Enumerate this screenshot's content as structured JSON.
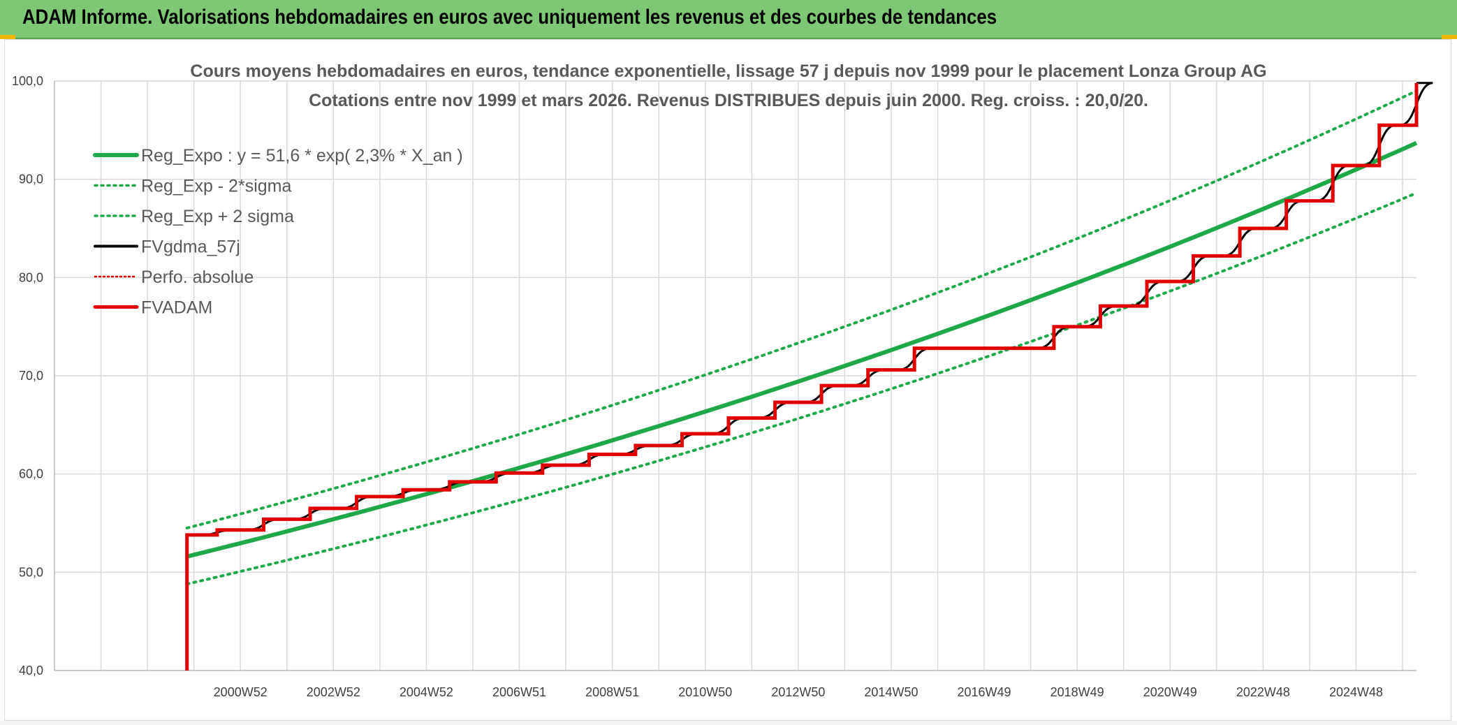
{
  "banner": {
    "title": "ADAM Informe. Valorisations hebdomadaires en euros avec uniquement les revenus et des courbes de tendances"
  },
  "chart_data": {
    "type": "line",
    "title": "Cours moyens hebdomadaires en euros, tendance exponentielle, lissage 57 j depuis nov 1999 pour le placement Lonza Group AG",
    "subtitle": "Cotations entre nov 1999 et mars 2026. Revenus DISTRIBUES depuis juin 2000. Reg. croiss. : 20,0/20.",
    "xlabel": "",
    "ylabel": "",
    "ylim": [
      40,
      100
    ],
    "xlim": [
      1997.0,
      2026.3
    ],
    "yticks": [
      "40,0",
      "50,0",
      "60,0",
      "70,0",
      "80,0",
      "90,0",
      "100,0"
    ],
    "xticks": [
      {
        "label": "2000W52",
        "x": 2001.0
      },
      {
        "label": "2002W52",
        "x": 2003.0
      },
      {
        "label": "2004W52",
        "x": 2005.0
      },
      {
        "label": "2006W51",
        "x": 2007.0
      },
      {
        "label": "2008W51",
        "x": 2009.0
      },
      {
        "label": "2010W50",
        "x": 2011.0
      },
      {
        "label": "2012W50",
        "x": 2013.0
      },
      {
        "label": "2014W50",
        "x": 2015.0
      },
      {
        "label": "2016W49",
        "x": 2017.0
      },
      {
        "label": "2018W49",
        "x": 2019.0
      },
      {
        "label": "2020W49",
        "x": 2021.0
      },
      {
        "label": "2022W48",
        "x": 2023.0
      },
      {
        "label": "2024W48",
        "x": 2025.0
      }
    ],
    "grid": true,
    "legend_position": "top-left",
    "series": [
      {
        "name": "Reg_Expo : y = 51,6 * exp( 2,3% *  X_an )",
        "color": "#1fa84a",
        "style": "solid-thick",
        "x": [
          1999.85,
          2026.3
        ],
        "y": [
          51.6,
          93.7
        ]
      },
      {
        "name": "Reg_Exp - 2*sigma",
        "color": "#1fa84a",
        "style": "dotted",
        "x": [
          1999.85,
          2026.3
        ],
        "y": [
          48.8,
          88.6
        ]
      },
      {
        "name": "Reg_Exp + 2 sigma",
        "color": "#1fa84a",
        "style": "dotted",
        "x": [
          1999.85,
          2026.3
        ],
        "y": [
          54.5,
          99.0
        ]
      },
      {
        "name": "FVgdma_57j",
        "color": "#000000",
        "style": "smooth-steps"
      },
      {
        "name": "Perfo. absolue",
        "color": "#e00000",
        "style": "dotted"
      },
      {
        "name": "FVADAM",
        "color": "#e00000",
        "style": "steps",
        "x": [
          1999.85,
          2000.5,
          2001.5,
          2002.5,
          2003.5,
          2004.5,
          2005.5,
          2006.5,
          2007.5,
          2008.5,
          2009.5,
          2010.5,
          2011.5,
          2012.5,
          2013.5,
          2014.5,
          2015.5,
          2018.5,
          2019.5,
          2020.5,
          2021.5,
          2022.5,
          2023.5,
          2024.5,
          2025.5,
          2026.3
        ],
        "y": [
          53.8,
          54.3,
          55.4,
          56.5,
          57.7,
          58.4,
          59.2,
          60.1,
          60.9,
          62.0,
          62.9,
          64.1,
          65.7,
          67.3,
          69.0,
          70.6,
          72.8,
          75.0,
          77.1,
          79.6,
          82.2,
          85.0,
          87.8,
          91.4,
          95.5,
          99.8
        ],
        "start_value": 40.0
      }
    ]
  }
}
